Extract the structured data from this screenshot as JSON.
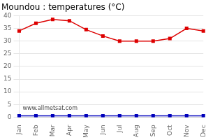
{
  "chart_data": {
    "type": "line",
    "title": "Moundou : temperatures (°C)",
    "categories": [
      "Jan",
      "Feb",
      "Mar",
      "Apr",
      "May",
      "Jun",
      "Jul",
      "Aug",
      "Sep",
      "Oct",
      "Nov",
      "Dec"
    ],
    "series": [
      {
        "color": "#dd0000",
        "marker": "square",
        "values": [
          34,
          37,
          38.5,
          38,
          34.5,
          32,
          30,
          30,
          30,
          31,
          35,
          34
        ]
      },
      {
        "color": "#0000bb",
        "marker": "square",
        "values": [
          0.5,
          0.5,
          0.5,
          0.5,
          0.5,
          0.5,
          0.5,
          0.5,
          0.5,
          0.5,
          0.5,
          0.5
        ]
      }
    ],
    "ylim": [
      0,
      40
    ],
    "yticks": [
      0,
      5,
      10,
      15,
      20,
      25,
      30,
      35,
      40
    ],
    "grid": "y",
    "annotations": [
      "www.allmetsat.com"
    ]
  }
}
